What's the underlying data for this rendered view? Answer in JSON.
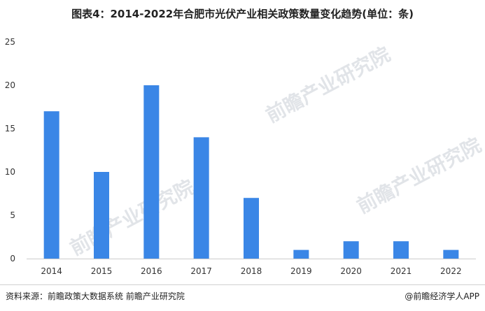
{
  "title": "图表4：2014-2022年合肥市光伏产业相关政策数量变化趋势(单位：条)",
  "chart_data": {
    "type": "bar",
    "categories": [
      "2014",
      "2015",
      "2016",
      "2017",
      "2018",
      "2019",
      "2020",
      "2021",
      "2022"
    ],
    "values": [
      17,
      10,
      20,
      14,
      7,
      1,
      2,
      2,
      1
    ],
    "ylim": [
      0,
      25
    ],
    "yticks": [
      0,
      5,
      10,
      15,
      20,
      25
    ],
    "grid": false,
    "bar_color": "#3a86e6"
  },
  "watermark": "前瞻产业研究院",
  "footer": {
    "source": "资料来源：前瞻政策大数据系统 前瞻产业研究院",
    "brand": "@前瞻经济学人APP"
  }
}
